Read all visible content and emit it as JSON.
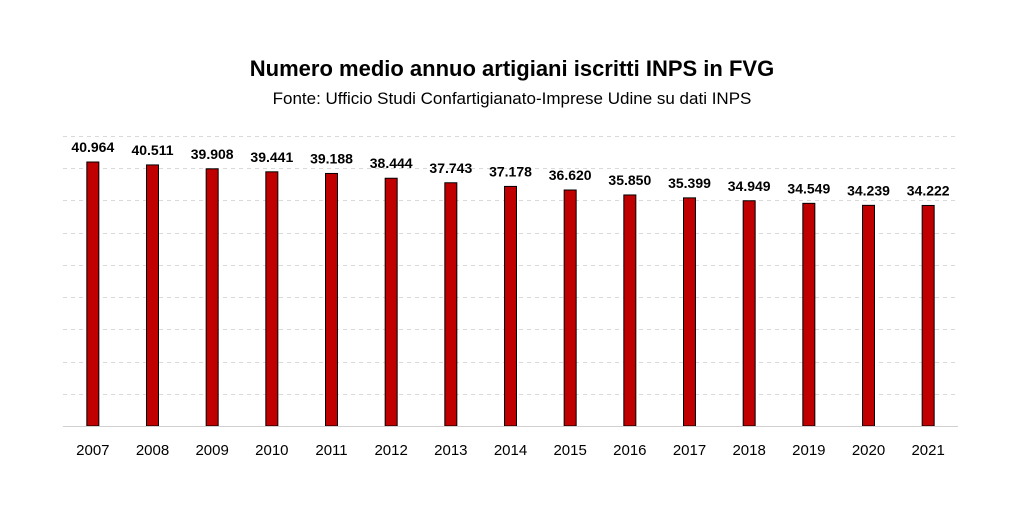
{
  "chart_data": {
    "type": "bar",
    "title": "Numero medio annuo artigiani iscritti INPS in FVG",
    "subtitle": "Fonte: Ufficio Studi Confartigianato-Imprese Udine su dati INPS",
    "categories": [
      "2007",
      "2008",
      "2009",
      "2010",
      "2011",
      "2012",
      "2013",
      "2014",
      "2015",
      "2016",
      "2017",
      "2018",
      "2019",
      "2020",
      "2021"
    ],
    "values": [
      40964,
      40511,
      39908,
      39441,
      39188,
      38444,
      37743,
      37178,
      36620,
      35850,
      35399,
      34949,
      34549,
      34239,
      34222
    ],
    "value_labels": [
      "40.964",
      "40.511",
      "39.908",
      "39.441",
      "39.188",
      "38.444",
      "37.743",
      "37.178",
      "36.620",
      "35.850",
      "35.399",
      "34.949",
      "34.549",
      "34.239",
      "34.222"
    ],
    "ylim": [
      0,
      45000
    ],
    "y_ticks_shown": false,
    "grid": true,
    "legend": "none",
    "bar_color": "#c00000",
    "bar_edge_color": "#000000",
    "grid_color": "#d9d9d9"
  }
}
